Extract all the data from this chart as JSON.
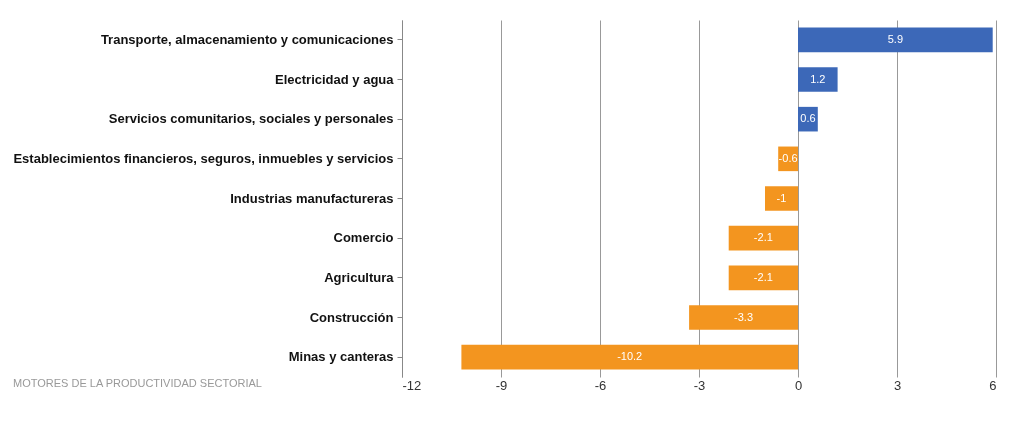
{
  "chart_data": {
    "type": "bar",
    "orientation": "horizontal",
    "categories": [
      "Transporte, almacenamiento y comunicaciones",
      "Electricidad y agua",
      "Servicios comunitarios, sociales y personales",
      "Establecimientos financieros, seguros, inmuebles y servicios",
      "Industrias manufactureras",
      "Comercio",
      "Agricultura",
      "Construcción",
      "Minas y canteras"
    ],
    "values": [
      5.9,
      1.2,
      0.6,
      -0.6,
      -1,
      -2.1,
      -2.1,
      -3.3,
      -10.2
    ],
    "colors": [
      "#3c68b8",
      "#3c68b8",
      "#3c68b8",
      "#f3951f",
      "#f3951f",
      "#f3951f",
      "#f3951f",
      "#f3951f",
      "#f3951f"
    ],
    "xlim": [
      -12,
      6
    ],
    "xticks": [
      -12,
      -9,
      -6,
      -3,
      0,
      3,
      6
    ],
    "grid": "x",
    "data_labels": true,
    "annotations": [
      "MOTORES DE LA PRODUCTIVIDAD SECTORIAL"
    ]
  }
}
